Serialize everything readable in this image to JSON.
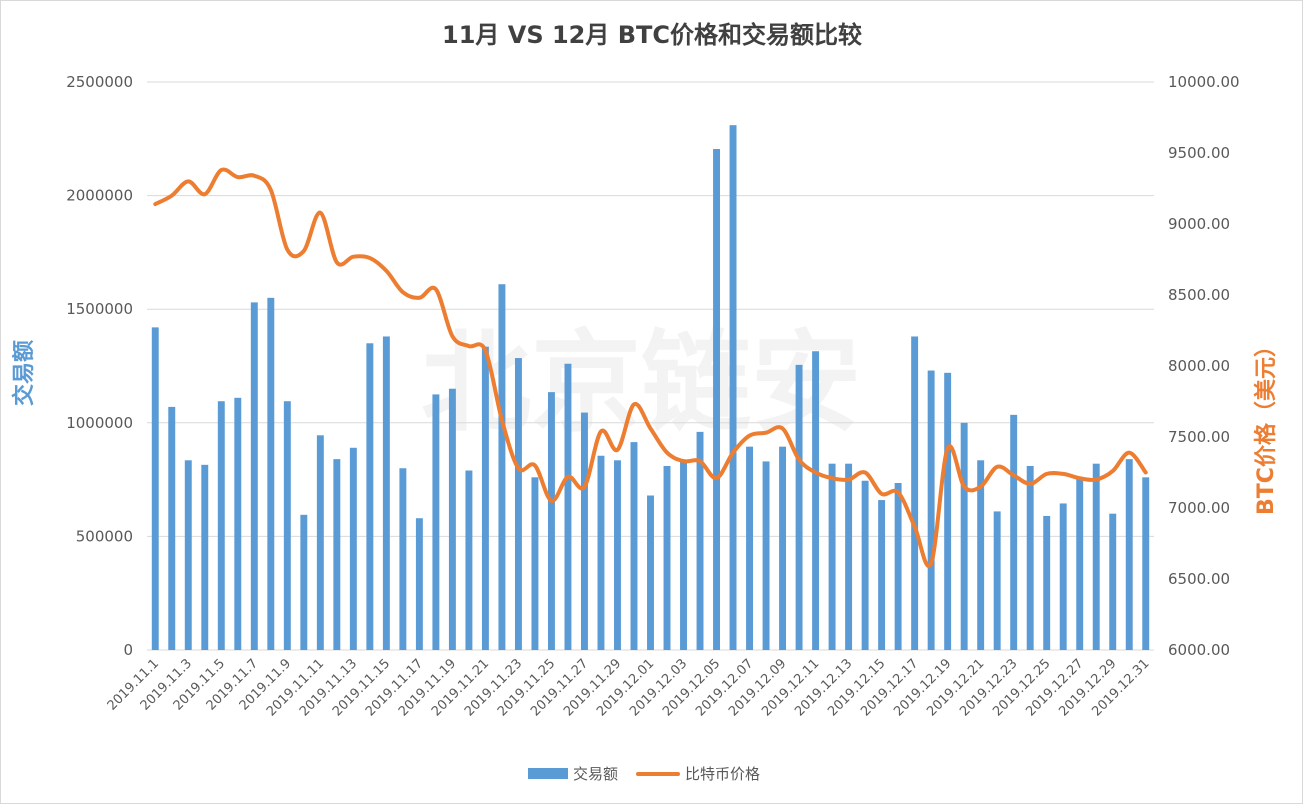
{
  "chart_data": {
    "type": "bar+line",
    "title": "11月 VS 12月 BTC价格和交易额比较",
    "watermark": "北京链安",
    "colors": {
      "bar": "#5b9bd5",
      "line": "#ed7d31"
    },
    "left_axis": {
      "label": "交易额",
      "range": [
        0,
        2500000
      ],
      "ticks": [
        "0",
        "500000",
        "1000000",
        "1500000",
        "2000000",
        "2500000"
      ]
    },
    "right_axis": {
      "label": "BTC价格（美元）",
      "range": [
        6000,
        10000
      ],
      "ticks": [
        "6000.00",
        "6500.00",
        "7000.00",
        "7500.00",
        "8000.00",
        "8500.00",
        "9000.00",
        "9500.00",
        "10000.00"
      ]
    },
    "categories": [
      "2019.11.1",
      "2019.11.2",
      "2019.11.3",
      "2019.11.4",
      "2019.11.5",
      "2019.11.6",
      "2019.11.7",
      "2019.11.8",
      "2019.11.9",
      "2019.11.10",
      "2019.11.11",
      "2019.11.12",
      "2019.11.13",
      "2019.11.14",
      "2019.11.15",
      "2019.11.16",
      "2019.11.17",
      "2019.11.18",
      "2019.11.19",
      "2019.11.20",
      "2019.11.21",
      "2019.11.22",
      "2019.11.23",
      "2019.11.24",
      "2019.11.25",
      "2019.11.26",
      "2019.11.27",
      "2019.11.28",
      "2019.11.29",
      "2019.11.30",
      "2019.12.01",
      "2019.12.02",
      "2019.12.03",
      "2019.12.04",
      "2019.12.05",
      "2019.12.06",
      "2019.12.07",
      "2019.12.08",
      "2019.12.09",
      "2019.12.10",
      "2019.12.11",
      "2019.12.12",
      "2019.12.13",
      "2019.12.14",
      "2019.12.15",
      "2019.12.16",
      "2019.12.17",
      "2019.12.18",
      "2019.12.19",
      "2019.12.20",
      "2019.12.21",
      "2019.12.22",
      "2019.12.23",
      "2019.12.24",
      "2019.12.25",
      "2019.12.26",
      "2019.12.27",
      "2019.12.28",
      "2019.12.29",
      "2019.12.30",
      "2019.12.31"
    ],
    "tick_label_every": 2,
    "series": [
      {
        "name": "交易额",
        "type": "bar",
        "axis": "left",
        "values": [
          1420000,
          1070000,
          835000,
          815000,
          1095000,
          1110000,
          1530000,
          1550000,
          1095000,
          595000,
          945000,
          840000,
          890000,
          1350000,
          1380000,
          800000,
          580000,
          1125000,
          1150000,
          790000,
          1335000,
          1610000,
          1285000,
          760000,
          1135000,
          1260000,
          1045000,
          855000,
          835000,
          915000,
          680000,
          810000,
          830000,
          960000,
          2205000,
          2310000,
          895000,
          830000,
          895000,
          1255000,
          1315000,
          820000,
          820000,
          745000,
          660000,
          735000,
          1380000,
          1230000,
          1220000,
          1000000,
          835000,
          610000,
          1035000,
          810000,
          590000,
          645000,
          760000,
          820000,
          600000,
          840000,
          760000
        ]
      },
      {
        "name": "比特币价格",
        "type": "line",
        "axis": "right",
        "values": [
          9140,
          9200,
          9300,
          9210,
          9380,
          9330,
          9340,
          9240,
          8820,
          8810,
          9080,
          8730,
          8770,
          8760,
          8670,
          8520,
          8480,
          8540,
          8210,
          8140,
          8110,
          7620,
          7280,
          7300,
          7050,
          7220,
          7150,
          7540,
          7410,
          7730,
          7560,
          7390,
          7330,
          7330,
          7210,
          7390,
          7510,
          7530,
          7560,
          7340,
          7250,
          7210,
          7200,
          7250,
          7100,
          7110,
          6870,
          6610,
          7420,
          7150,
          7150,
          7290,
          7230,
          7170,
          7240,
          7240,
          7210,
          7200,
          7260,
          7390,
          7250
        ]
      }
    ],
    "legend": {
      "position": "bottom",
      "entries": [
        "交易额",
        "比特币价格"
      ]
    }
  }
}
